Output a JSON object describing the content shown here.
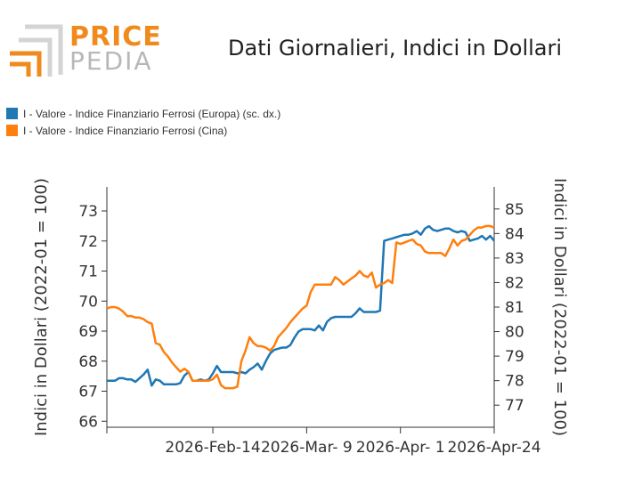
{
  "logo": {
    "line1": "PRICE",
    "line2": "PEDIA"
  },
  "chart_data": {
    "type": "line",
    "title": "Dati Giornalieri, Indici in Dollari",
    "ylabel_left": "Indici in Dollari (2022-01 = 100)",
    "ylabel_right": "Indici in Dollari (2022-01 = 100)",
    "ylim_left": [
      65.8,
      73.8
    ],
    "ylim_right": [
      76.1,
      85.9
    ],
    "yticks_left": [
      "66",
      "67",
      "68",
      "69",
      "70",
      "71",
      "72",
      "73"
    ],
    "yticks_right": [
      "77",
      "78",
      "79",
      "80",
      "81",
      "82",
      "83",
      "84",
      "85"
    ],
    "xlim": [
      "2026-01-19",
      "2026-04-24"
    ],
    "xticks": [
      "2026-Feb-14",
      "2026-Mar- 9",
      "2026-Apr- 1",
      "2026-Apr-24"
    ],
    "grid": false,
    "legend_position": "top-left",
    "series": [
      {
        "name": "I - Valore - Indice Finanziario Ferrosi (Europa) (sc. dx.)",
        "axis": "right",
        "color": "#1f77b4",
        "points": [
          [
            "2026-01-19",
            78.0
          ],
          [
            "2026-01-20",
            78.0
          ],
          [
            "2026-01-21",
            78.0
          ],
          [
            "2026-01-22",
            78.1
          ],
          [
            "2026-01-23",
            78.1
          ],
          [
            "2026-01-24",
            78.05
          ],
          [
            "2026-01-25",
            78.05
          ],
          [
            "2026-01-26",
            77.95
          ],
          [
            "2026-01-27",
            78.1
          ],
          [
            "2026-01-28",
            78.25
          ],
          [
            "2026-01-29",
            78.45
          ],
          [
            "2026-01-30",
            77.8
          ],
          [
            "2026-01-31",
            78.05
          ],
          [
            "2026-02-01",
            78.0
          ],
          [
            "2026-02-02",
            77.85
          ],
          [
            "2026-02-03",
            77.85
          ],
          [
            "2026-02-04",
            77.85
          ],
          [
            "2026-02-05",
            77.85
          ],
          [
            "2026-02-06",
            77.9
          ],
          [
            "2026-02-07",
            78.2
          ],
          [
            "2026-02-08",
            78.35
          ],
          [
            "2026-02-09",
            78.0
          ],
          [
            "2026-02-10",
            78.0
          ],
          [
            "2026-02-11",
            78.05
          ],
          [
            "2026-02-12",
            78.0
          ],
          [
            "2026-02-13",
            78.05
          ],
          [
            "2026-02-14",
            78.3
          ],
          [
            "2026-02-15",
            78.6
          ],
          [
            "2026-02-16",
            78.35
          ],
          [
            "2026-02-17",
            78.35
          ],
          [
            "2026-02-18",
            78.35
          ],
          [
            "2026-02-19",
            78.35
          ],
          [
            "2026-02-20",
            78.3
          ],
          [
            "2026-02-21",
            78.35
          ],
          [
            "2026-02-22",
            78.3
          ],
          [
            "2026-02-23",
            78.45
          ],
          [
            "2026-02-24",
            78.55
          ],
          [
            "2026-02-25",
            78.7
          ],
          [
            "2026-02-26",
            78.45
          ],
          [
            "2026-02-27",
            78.8
          ],
          [
            "2026-02-28",
            79.1
          ],
          [
            "2026-03-01",
            79.25
          ],
          [
            "2026-03-02",
            79.3
          ],
          [
            "2026-03-03",
            79.35
          ],
          [
            "2026-03-04",
            79.35
          ],
          [
            "2026-03-05",
            79.45
          ],
          [
            "2026-03-06",
            79.75
          ],
          [
            "2026-03-07",
            80.0
          ],
          [
            "2026-03-08",
            80.1
          ],
          [
            "2026-03-09",
            80.1
          ],
          [
            "2026-03-10",
            80.1
          ],
          [
            "2026-03-11",
            80.05
          ],
          [
            "2026-03-12",
            80.25
          ],
          [
            "2026-03-13",
            80.05
          ],
          [
            "2026-03-14",
            80.4
          ],
          [
            "2026-03-15",
            80.55
          ],
          [
            "2026-03-16",
            80.6
          ],
          [
            "2026-03-17",
            80.6
          ],
          [
            "2026-03-18",
            80.6
          ],
          [
            "2026-03-19",
            80.6
          ],
          [
            "2026-03-20",
            80.6
          ],
          [
            "2026-03-21",
            80.75
          ],
          [
            "2026-03-22",
            80.95
          ],
          [
            "2026-03-23",
            80.8
          ],
          [
            "2026-03-24",
            80.8
          ],
          [
            "2026-03-25",
            80.8
          ],
          [
            "2026-03-26",
            80.8
          ],
          [
            "2026-03-27",
            80.85
          ],
          [
            "2026-03-28",
            83.7
          ],
          [
            "2026-03-29",
            83.75
          ],
          [
            "2026-03-30",
            83.8
          ],
          [
            "2026-03-31",
            83.85
          ],
          [
            "2026-04-01",
            83.9
          ],
          [
            "2026-04-02",
            83.95
          ],
          [
            "2026-04-03",
            83.95
          ],
          [
            "2026-04-04",
            84.0
          ],
          [
            "2026-04-05",
            84.1
          ],
          [
            "2026-04-06",
            83.95
          ],
          [
            "2026-04-07",
            84.2
          ],
          [
            "2026-04-08",
            84.3
          ],
          [
            "2026-04-09",
            84.15
          ],
          [
            "2026-04-10",
            84.1
          ],
          [
            "2026-04-11",
            84.15
          ],
          [
            "2026-04-12",
            84.2
          ],
          [
            "2026-04-13",
            84.2
          ],
          [
            "2026-04-14",
            84.1
          ],
          [
            "2026-04-15",
            84.05
          ],
          [
            "2026-04-16",
            84.1
          ],
          [
            "2026-04-17",
            84.05
          ],
          [
            "2026-04-18",
            83.7
          ],
          [
            "2026-04-19",
            83.75
          ],
          [
            "2026-04-20",
            83.8
          ],
          [
            "2026-04-21",
            83.9
          ],
          [
            "2026-04-22",
            83.75
          ],
          [
            "2026-04-23",
            83.9
          ],
          [
            "2026-04-24",
            83.7
          ]
        ]
      },
      {
        "name": "I - Valore - Indice Finanziario Ferrosi (Cina)",
        "axis": "left",
        "color": "#ff7f0e",
        "points": [
          [
            "2026-01-19",
            69.75
          ],
          [
            "2026-01-20",
            69.8
          ],
          [
            "2026-01-21",
            69.8
          ],
          [
            "2026-01-22",
            69.75
          ],
          [
            "2026-01-23",
            69.65
          ],
          [
            "2026-01-24",
            69.5
          ],
          [
            "2026-01-25",
            69.5
          ],
          [
            "2026-01-26",
            69.45
          ],
          [
            "2026-01-27",
            69.45
          ],
          [
            "2026-01-28",
            69.4
          ],
          [
            "2026-01-29",
            69.3
          ],
          [
            "2026-01-30",
            69.25
          ],
          [
            "2026-01-31",
            68.6
          ],
          [
            "2026-02-01",
            68.55
          ],
          [
            "2026-02-02",
            68.3
          ],
          [
            "2026-02-03",
            68.15
          ],
          [
            "2026-02-04",
            67.95
          ],
          [
            "2026-02-05",
            67.8
          ],
          [
            "2026-02-06",
            67.65
          ],
          [
            "2026-02-07",
            67.75
          ],
          [
            "2026-02-08",
            67.65
          ],
          [
            "2026-02-09",
            67.35
          ],
          [
            "2026-02-10",
            67.35
          ],
          [
            "2026-02-11",
            67.35
          ],
          [
            "2026-02-12",
            67.35
          ],
          [
            "2026-02-13",
            67.35
          ],
          [
            "2026-02-14",
            67.4
          ],
          [
            "2026-02-15",
            67.55
          ],
          [
            "2026-02-16",
            67.2
          ],
          [
            "2026-02-17",
            67.1
          ],
          [
            "2026-02-18",
            67.1
          ],
          [
            "2026-02-19",
            67.1
          ],
          [
            "2026-02-20",
            67.15
          ],
          [
            "2026-02-21",
            68.0
          ],
          [
            "2026-02-22",
            68.35
          ],
          [
            "2026-02-23",
            68.8
          ],
          [
            "2026-02-24",
            68.6
          ],
          [
            "2026-02-25",
            68.5
          ],
          [
            "2026-02-26",
            68.5
          ],
          [
            "2026-02-27",
            68.45
          ],
          [
            "2026-02-28",
            68.35
          ],
          [
            "2026-03-01",
            68.5
          ],
          [
            "2026-03-02",
            68.8
          ],
          [
            "2026-03-03",
            68.95
          ],
          [
            "2026-03-04",
            69.1
          ],
          [
            "2026-03-05",
            69.3
          ],
          [
            "2026-03-06",
            69.45
          ],
          [
            "2026-03-07",
            69.6
          ],
          [
            "2026-03-08",
            69.75
          ],
          [
            "2026-03-09",
            69.85
          ],
          [
            "2026-03-10",
            70.3
          ],
          [
            "2026-03-11",
            70.55
          ],
          [
            "2026-03-12",
            70.55
          ],
          [
            "2026-03-13",
            70.55
          ],
          [
            "2026-03-14",
            70.55
          ],
          [
            "2026-03-15",
            70.55
          ],
          [
            "2026-03-16",
            70.8
          ],
          [
            "2026-03-17",
            70.7
          ],
          [
            "2026-03-18",
            70.55
          ],
          [
            "2026-03-19",
            70.65
          ],
          [
            "2026-03-20",
            70.75
          ],
          [
            "2026-03-21",
            70.85
          ],
          [
            "2026-03-22",
            71.0
          ],
          [
            "2026-03-23",
            70.85
          ],
          [
            "2026-03-24",
            70.8
          ],
          [
            "2026-03-25",
            70.95
          ],
          [
            "2026-03-26",
            70.45
          ],
          [
            "2026-03-27",
            70.55
          ],
          [
            "2026-03-28",
            70.6
          ],
          [
            "2026-03-29",
            70.7
          ],
          [
            "2026-03-30",
            70.6
          ],
          [
            "2026-03-31",
            71.95
          ],
          [
            "2026-04-01",
            71.9
          ],
          [
            "2026-04-02",
            71.95
          ],
          [
            "2026-04-03",
            72.0
          ],
          [
            "2026-04-04",
            72.05
          ],
          [
            "2026-04-05",
            71.9
          ],
          [
            "2026-04-06",
            71.85
          ],
          [
            "2026-04-07",
            71.65
          ],
          [
            "2026-04-08",
            71.6
          ],
          [
            "2026-04-09",
            71.6
          ],
          [
            "2026-04-10",
            71.6
          ],
          [
            "2026-04-11",
            71.6
          ],
          [
            "2026-04-12",
            71.5
          ],
          [
            "2026-04-13",
            71.75
          ],
          [
            "2026-04-14",
            72.05
          ],
          [
            "2026-04-15",
            71.85
          ],
          [
            "2026-04-16",
            72.0
          ],
          [
            "2026-04-17",
            72.05
          ],
          [
            "2026-04-18",
            72.2
          ],
          [
            "2026-04-19",
            72.35
          ],
          [
            "2026-04-20",
            72.45
          ],
          [
            "2026-04-21",
            72.45
          ],
          [
            "2026-04-22",
            72.5
          ],
          [
            "2026-04-23",
            72.5
          ],
          [
            "2026-04-24",
            72.45
          ]
        ]
      }
    ]
  }
}
